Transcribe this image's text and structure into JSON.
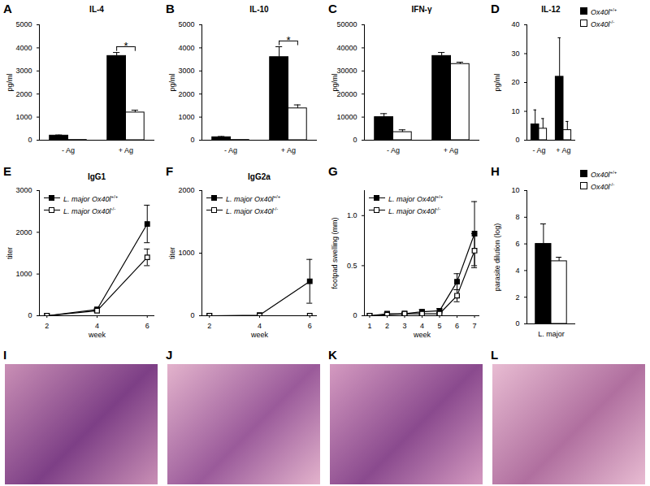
{
  "chart_data": [
    {
      "panel": "A",
      "type": "bar",
      "title": "IL-4",
      "y_label": "pg/ml",
      "categories": [
        "- Ag",
        "+ Ag"
      ],
      "series": [
        {
          "name": "Ox40l+/+",
          "color": "#000000",
          "values": [
            200,
            3650
          ],
          "errors": [
            25,
            150
          ]
        },
        {
          "name": "Ox40l-/-",
          "color": "#ffffff",
          "values": [
            10,
            1200
          ],
          "errors": [
            null,
            100
          ]
        }
      ],
      "ylim": [
        0,
        5000
      ],
      "yticks": [
        0,
        1000,
        2000,
        3000,
        4000,
        5000
      ],
      "annotations": [
        {
          "text": "*",
          "category": "+ Ag"
        }
      ]
    },
    {
      "panel": "B",
      "type": "bar",
      "title": "IL-10",
      "y_label": "pg/ml",
      "categories": [
        "- Ag",
        "+ Ag"
      ],
      "series": [
        {
          "name": "Ox40l+/+",
          "color": "#000000",
          "values": [
            130,
            3600
          ],
          "errors": [
            30,
            450
          ]
        },
        {
          "name": "Ox40l-/-",
          "color": "#ffffff",
          "values": [
            10,
            1380
          ],
          "errors": [
            null,
            150
          ]
        }
      ],
      "ylim": [
        0,
        5000
      ],
      "yticks": [
        0,
        1000,
        2000,
        3000,
        4000,
        5000
      ],
      "annotations": [
        {
          "text": "*",
          "category": "+ Ag"
        }
      ]
    },
    {
      "panel": "C",
      "type": "bar",
      "title": "IFN-γ",
      "y_label": "pg/ml",
      "categories": [
        "- Ag",
        "+ Ag"
      ],
      "series": [
        {
          "name": "Ox40l+/+",
          "color": "#000000",
          "values": [
            10000,
            36500
          ],
          "errors": [
            1500,
            1500
          ]
        },
        {
          "name": "Ox40l-/-",
          "color": "#ffffff",
          "values": [
            3500,
            33000
          ],
          "errors": [
            1000,
            800
          ]
        }
      ],
      "ylim": [
        0,
        50000
      ],
      "yticks": [
        0,
        10000,
        20000,
        30000,
        40000,
        50000
      ]
    },
    {
      "panel": "D",
      "type": "bar",
      "title": "IL-12",
      "y_label": "pg/ml",
      "categories": [
        "- Ag",
        "+ Ag"
      ],
      "series": [
        {
          "name": "Ox40l+/+",
          "color": "#000000",
          "values": [
            5.5,
            22
          ],
          "errors": [
            5,
            13.5
          ]
        },
        {
          "name": "Ox40l-/-",
          "color": "#ffffff",
          "values": [
            4,
            3.5
          ],
          "errors": [
            3.5,
            3
          ]
        }
      ],
      "ylim": [
        0,
        40
      ],
      "yticks": [
        0,
        10,
        20,
        30,
        40
      ],
      "legend": "top-right"
    },
    {
      "panel": "E",
      "type": "line",
      "title": "IgG1",
      "x_label": "week",
      "y_label": "titer",
      "x": [
        2,
        4,
        6
      ],
      "xlim": [
        1.7,
        6.3
      ],
      "xticks": [
        2,
        4,
        6
      ],
      "series": [
        {
          "name": "L. major Ox40l+/+",
          "color": "#000000",
          "marker": "square",
          "values": [
            0,
            150,
            2200
          ],
          "errors": [
            null,
            30,
            450
          ]
        },
        {
          "name": "L. major Ox40l-/-",
          "color": "#000000",
          "marker": "open-square",
          "values": [
            0,
            120,
            1400
          ],
          "errors": [
            null,
            30,
            200
          ]
        }
      ],
      "ylim": [
        0,
        3000
      ],
      "yticks": [
        0,
        1000,
        2000,
        3000
      ],
      "legend": "top-left"
    },
    {
      "panel": "F",
      "type": "line",
      "title": "IgG2a",
      "x_label": "week",
      "y_label": "titer",
      "x": [
        2,
        4,
        6
      ],
      "xlim": [
        1.7,
        6.3
      ],
      "xticks": [
        2,
        4,
        6
      ],
      "series": [
        {
          "name": "L. major Ox40l+/+",
          "color": "#000000",
          "marker": "square",
          "values": [
            0,
            10,
            550
          ],
          "errors": [
            null,
            null,
            350
          ]
        },
        {
          "name": "L. major Ox40l-/-",
          "color": "#000000",
          "marker": "open-square",
          "values": [
            0,
            0,
            0
          ],
          "errors": [
            null,
            null,
            null
          ]
        }
      ],
      "ylim": [
        0,
        2000
      ],
      "yticks": [
        0,
        1000,
        2000
      ],
      "legend": "top-left"
    },
    {
      "panel": "G",
      "type": "line",
      "x_label": "week",
      "y_label": "footpad swelling (mm)",
      "x": [
        1,
        2,
        3,
        4,
        5,
        6,
        7
      ],
      "xlim": [
        0.7,
        7.3
      ],
      "xticks": [
        1,
        2,
        3,
        4,
        5,
        6,
        7
      ],
      "series": [
        {
          "name": "L. major Ox40l+/+",
          "color": "#000000",
          "marker": "square",
          "values": [
            0,
            0.02,
            0.02,
            0.04,
            0.05,
            0.34,
            0.82
          ],
          "errors": [
            null,
            0.01,
            0.01,
            0.02,
            0.02,
            0.08,
            0.32
          ]
        },
        {
          "name": "L. major Ox40l-/-",
          "color": "#000000",
          "marker": "open-square",
          "values": [
            0,
            0.01,
            0.02,
            0.02,
            0.02,
            0.2,
            0.65
          ],
          "errors": [
            null,
            null,
            0.01,
            0.01,
            0.01,
            0.06,
            0.17
          ]
        }
      ],
      "ylim": [
        0,
        1.25
      ],
      "yticks": [
        0,
        0.5,
        {
          "value": 1,
          "label": "1.0"
        }
      ],
      "legend": "top-left"
    },
    {
      "panel": "H",
      "type": "bar",
      "y_label": "parasite dilution (log)",
      "categories": [
        "L. major"
      ],
      "series": [
        {
          "name": "Ox40l+/+",
          "color": "#000000",
          "values": [
            6.0
          ],
          "errors": [
            1.5
          ]
        },
        {
          "name": "Ox40l-/-",
          "color": "#ffffff",
          "values": [
            4.7
          ],
          "errors": [
            0.3
          ]
        }
      ],
      "ylim": [
        0,
        10
      ],
      "yticks": [
        0,
        2,
        4,
        6,
        8,
        10
      ],
      "legend": "top-right"
    }
  ],
  "images": [
    {
      "panel": "I"
    },
    {
      "panel": "J"
    },
    {
      "panel": "K"
    },
    {
      "panel": "L"
    }
  ]
}
